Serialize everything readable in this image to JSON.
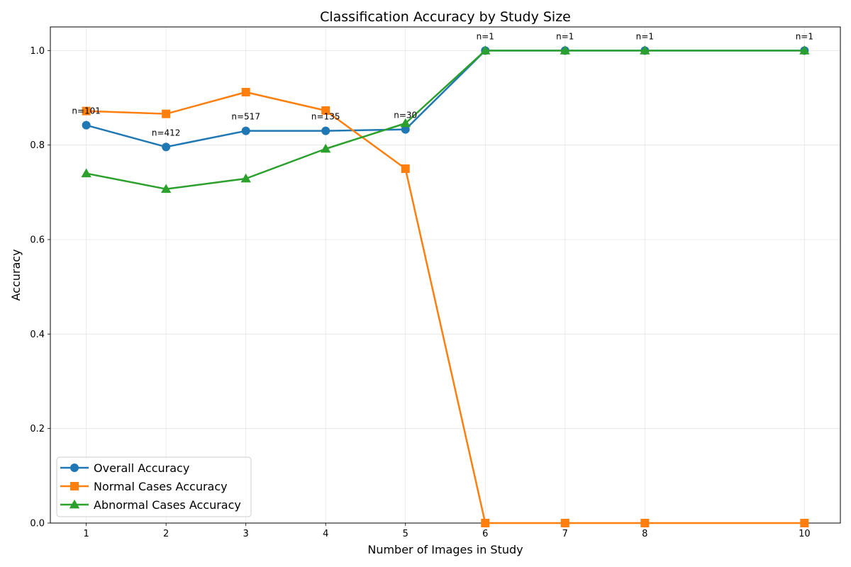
{
  "chart_data": {
    "type": "line",
    "title": "Classification Accuracy by Study Size",
    "xlabel": "Number of Images in Study",
    "ylabel": "Accuracy",
    "x": [
      1,
      2,
      3,
      4,
      5,
      6,
      7,
      8,
      10
    ],
    "xticks": [
      1,
      2,
      3,
      4,
      5,
      6,
      7,
      8,
      10
    ],
    "yticks": [
      "0.0",
      "0.2",
      "0.4",
      "0.6",
      "0.8",
      "1.0"
    ],
    "xlim": [
      0.55,
      10.45
    ],
    "ylim": [
      0.0,
      1.05
    ],
    "grid": true,
    "legend_position": "lower-left",
    "series": [
      {
        "name": "Overall Accuracy",
        "color": "#1f77b4",
        "marker": "circle",
        "values": [
          0.842,
          0.796,
          0.83,
          0.83,
          0.833,
          1.0,
          1.0,
          1.0,
          1.0
        ]
      },
      {
        "name": "Normal Cases Accuracy",
        "color": "#ff7f0e",
        "marker": "square",
        "values": [
          0.872,
          0.866,
          0.912,
          0.873,
          0.75,
          0.0,
          0.0,
          0.0,
          0.0
        ]
      },
      {
        "name": "Abnormal Cases Accuracy",
        "color": "#2ca02c",
        "marker": "triangle",
        "values": [
          0.74,
          0.707,
          0.729,
          0.792,
          0.846,
          1.0,
          1.0,
          1.0,
          1.0
        ]
      }
    ],
    "annotations": [
      {
        "x": 1,
        "y": 0.842,
        "text": "n=101"
      },
      {
        "x": 2,
        "y": 0.796,
        "text": "n=412"
      },
      {
        "x": 3,
        "y": 0.83,
        "text": "n=517"
      },
      {
        "x": 4,
        "y": 0.83,
        "text": "n=135"
      },
      {
        "x": 5,
        "y": 0.833,
        "text": "n=30"
      },
      {
        "x": 6,
        "y": 1.0,
        "text": "n=1"
      },
      {
        "x": 7,
        "y": 1.0,
        "text": "n=1"
      },
      {
        "x": 8,
        "y": 1.0,
        "text": "n=1"
      },
      {
        "x": 10,
        "y": 1.0,
        "text": "n=1"
      }
    ]
  }
}
